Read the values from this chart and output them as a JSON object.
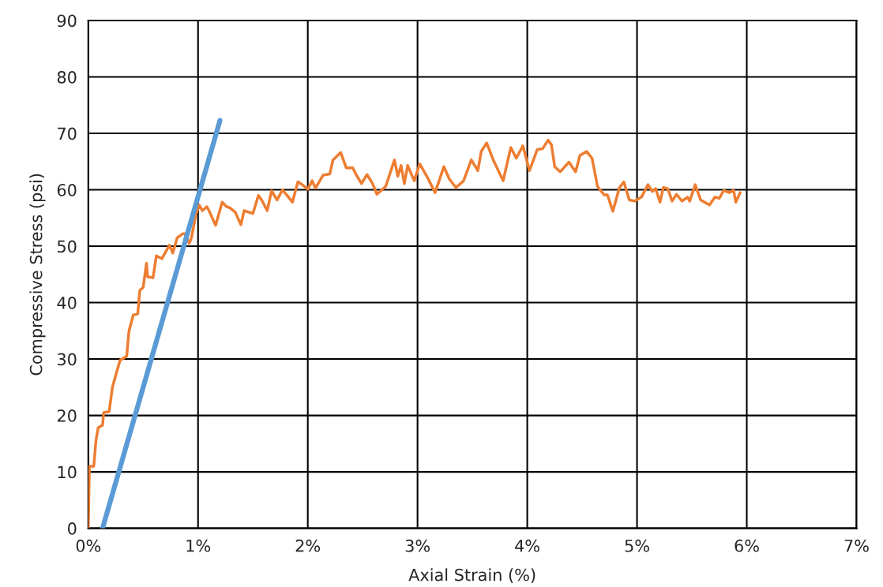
{
  "chart_data": {
    "type": "line",
    "xlabel": "Axial Strain (%)",
    "ylabel": "Compressive Stress (psi)",
    "xlim": [
      0,
      7
    ],
    "xticks": [
      {
        "value": 0,
        "label": "0%"
      },
      {
        "value": 1,
        "label": "1%"
      },
      {
        "value": 2,
        "label": "2%"
      },
      {
        "value": 3,
        "label": "3%"
      },
      {
        "value": 4,
        "label": "4%"
      },
      {
        "value": 5,
        "label": "5%"
      },
      {
        "value": 6,
        "label": "6%"
      },
      {
        "value": 7,
        "label": "7%"
      }
    ],
    "ylim": [
      0,
      90
    ],
    "yticks": [
      0,
      10,
      20,
      30,
      40,
      50,
      60,
      70,
      80,
      90
    ],
    "grid": true,
    "legend": false,
    "marker": "none",
    "line_style": "solid",
    "series": [
      {
        "color": "#ed7d31",
        "x": [
          0,
          0.01,
          0.05,
          0.07,
          0.09,
          0.13,
          0.14,
          0.19,
          0.22,
          0.26,
          0.29,
          0.35,
          0.37,
          0.41,
          0.45,
          0.47,
          0.5,
          0.53,
          0.54,
          0.59,
          0.62,
          0.67,
          0.74,
          0.77,
          0.81,
          0.86,
          0.88,
          0.92,
          0.94,
          0.98,
          1.01,
          1.04,
          1.08,
          1.1,
          1.16,
          1.22,
          1.26,
          1.29,
          1.34,
          1.39,
          1.42,
          1.5,
          1.55,
          1.58,
          1.63,
          1.67,
          1.72,
          1.77,
          1.82,
          1.86,
          1.91,
          1.95,
          2.0,
          2.04,
          2.07,
          2.14,
          2.2,
          2.23,
          2.3,
          2.35,
          2.41,
          2.44,
          2.49,
          2.54,
          2.59,
          2.63,
          2.71,
          2.79,
          2.82,
          2.85,
          2.88,
          2.91,
          2.97,
          3.02,
          3.09,
          3.16,
          3.24,
          3.29,
          3.35,
          3.42,
          3.49,
          3.55,
          3.58,
          3.63,
          3.69,
          3.78,
          3.85,
          3.9,
          3.96,
          4.02,
          4.09,
          4.14,
          4.19,
          4.22,
          4.25,
          4.3,
          4.38,
          4.44,
          4.48,
          4.54,
          4.59,
          4.64,
          4.7,
          4.73,
          4.78,
          4.84,
          4.88,
          4.93,
          4.98,
          5.04,
          5.1,
          5.14,
          5.17,
          5.21,
          5.24,
          5.28,
          5.32,
          5.36,
          5.41,
          5.46,
          5.48,
          5.53,
          5.58,
          5.66,
          5.71,
          5.75,
          5.79,
          5.84,
          5.88,
          5.9,
          5.94
        ],
        "values": [
          0,
          11,
          11,
          15.6,
          17.8,
          18.3,
          20.5,
          20.7,
          25,
          27.8,
          29.8,
          30.5,
          34.9,
          37.8,
          38,
          42.2,
          42.7,
          47,
          44.6,
          44.4,
          48.3,
          47.8,
          50.2,
          48.8,
          51.5,
          52.2,
          52.2,
          50.5,
          51.5,
          55.6,
          57.3,
          56.3,
          57,
          56.3,
          53.7,
          57.8,
          57,
          56.8,
          56,
          53.8,
          56.3,
          55.8,
          59,
          58.2,
          56.3,
          59.8,
          58.2,
          60,
          58.8,
          57.8,
          61.4,
          60.9,
          60.1,
          61.6,
          60.3,
          62.6,
          62.8,
          65.3,
          66.6,
          63.9,
          63.9,
          62.7,
          61.1,
          62.7,
          61.1,
          59.2,
          60.6,
          65.3,
          62.4,
          64.3,
          61.1,
          64.3,
          61.6,
          64.6,
          62.2,
          59.5,
          64.1,
          61.9,
          60.4,
          61.6,
          65.3,
          63.4,
          66.8,
          68.3,
          65.3,
          61.6,
          67.5,
          65.6,
          67.8,
          63.4,
          67.1,
          67.3,
          68.8,
          68,
          64.1,
          63.2,
          64.9,
          63.2,
          66.1,
          66.8,
          65.6,
          60.6,
          59.1,
          59.1,
          56.2,
          60.4,
          61.4,
          58.2,
          58,
          58.7,
          60.9,
          59.7,
          60.2,
          57.8,
          60.4,
          60.2,
          58,
          59.2,
          58,
          58.7,
          58,
          60.9,
          58.2,
          57.3,
          58.7,
          58.5,
          59.9,
          59.5,
          59.9,
          57.8,
          59.5
        ]
      },
      {
        "color": "#5b9bd5",
        "x": [
          0.13,
          1.2
        ],
        "values": [
          0,
          72.3
        ]
      }
    ]
  }
}
